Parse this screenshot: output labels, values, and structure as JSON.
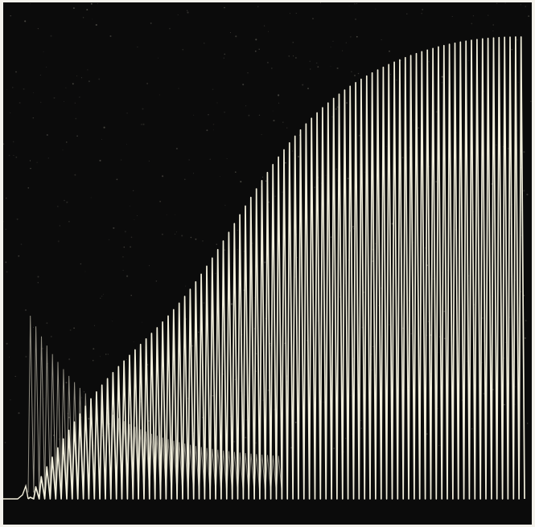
{
  "image": {
    "background_color": "#0b0b0b",
    "trace_color": "#f1eedb",
    "echo_color": "#c9c5b5",
    "frame_color": "#f4f2ec"
  },
  "trace": {
    "peak_count": 90
  }
}
